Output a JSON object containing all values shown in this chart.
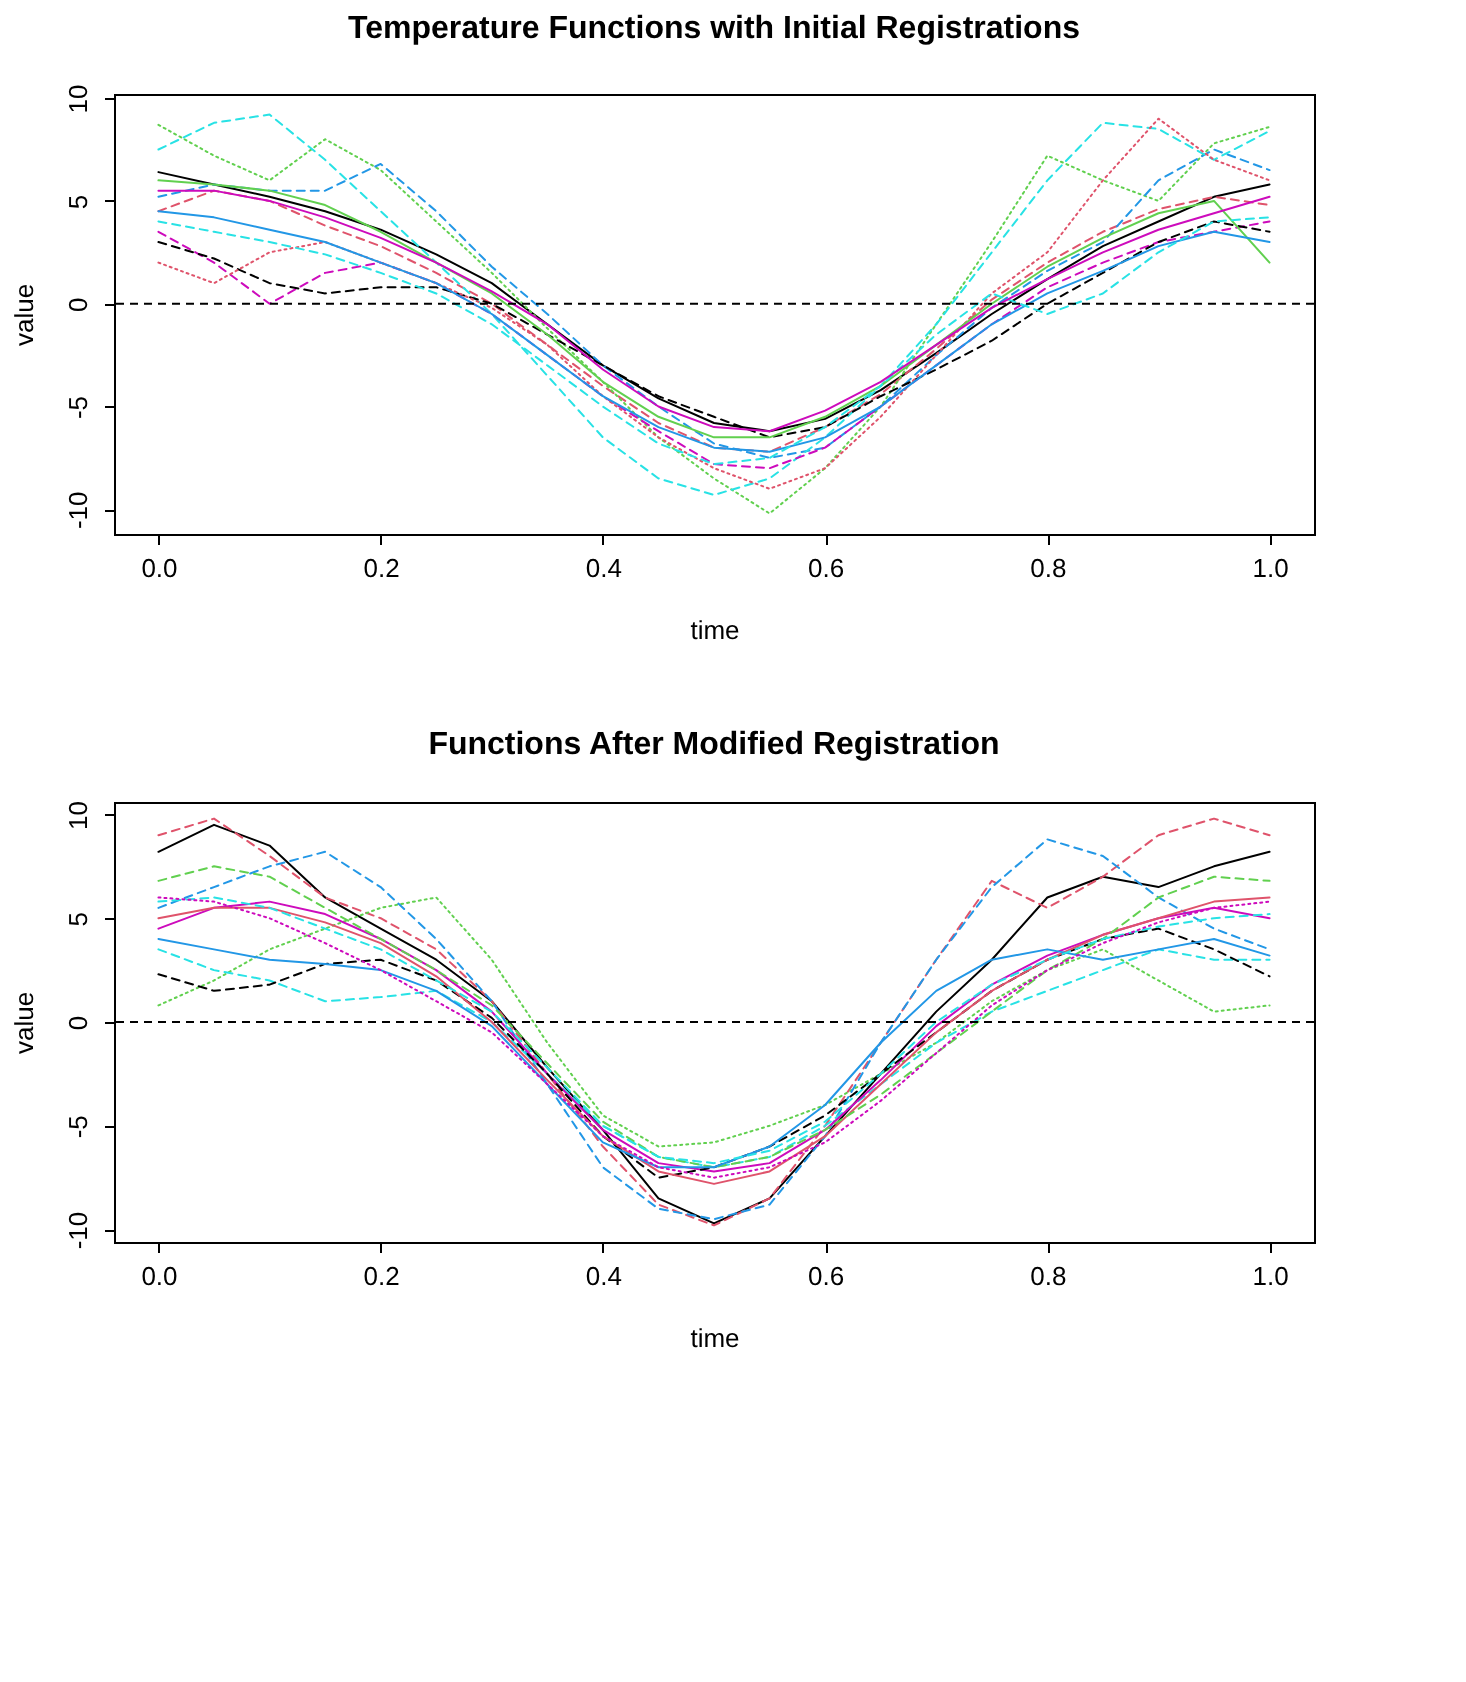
{
  "chart_data": [
    {
      "type": "line",
      "title": "Temperature Functions with Initial Registrations",
      "xlabel": "time",
      "ylabel": "value",
      "x": [
        0,
        0.05,
        0.1,
        0.15,
        0.2,
        0.25,
        0.3,
        0.35,
        0.4,
        0.45,
        0.5,
        0.55,
        0.6,
        0.65,
        0.7,
        0.75,
        0.8,
        0.85,
        0.9,
        0.95,
        1
      ],
      "xlim": [
        -0.04,
        1.04
      ],
      "ylim": [
        -11.2,
        10.2
      ],
      "xticks": [
        {
          "value": 0,
          "label": "0.0"
        },
        0.2,
        0.4,
        0.6,
        0.8,
        {
          "value": 1,
          "label": "1.0"
        }
      ],
      "yticks": [
        -10,
        -5,
        0,
        5,
        10
      ],
      "ref_lines": [
        {
          "axis": "y",
          "value": 0,
          "color": "#000000",
          "line_style": "dashed"
        }
      ],
      "series": [
        {
          "color": "#000000",
          "line_style": "solid",
          "values": [
            6.4,
            5.8,
            5.2,
            4.5,
            3.6,
            2.4,
            1.0,
            -1.0,
            -3.0,
            -4.6,
            -5.8,
            -6.2,
            -5.6,
            -4.2,
            -2.4,
            -0.5,
            1.2,
            2.8,
            4.0,
            5.2,
            5.8
          ]
        },
        {
          "color": "#df536b",
          "line_style": "dashed",
          "values": [
            4.5,
            5.5,
            5.0,
            3.8,
            2.8,
            1.5,
            0.0,
            -2.0,
            -4.0,
            -5.8,
            -7.0,
            -7.2,
            -6.0,
            -4.4,
            -2.2,
            0.2,
            2.0,
            3.5,
            4.6,
            5.2,
            4.8
          ]
        },
        {
          "color": "#61d04f",
          "line_style": "dotted",
          "values": [
            8.7,
            7.2,
            6.0,
            8.0,
            6.5,
            4.0,
            1.5,
            -1.2,
            -3.8,
            -6.5,
            -8.5,
            -10.2,
            -8.0,
            -5.0,
            -1.0,
            3.0,
            7.2,
            6.0,
            5.0,
            7.8,
            8.6
          ]
        },
        {
          "color": "#2297e6",
          "line_style": "dashed",
          "values": [
            5.2,
            5.8,
            5.5,
            5.5,
            6.8,
            4.5,
            1.8,
            -0.5,
            -3.0,
            -5.0,
            -6.8,
            -7.5,
            -7.0,
            -5.0,
            -2.5,
            -0.2,
            1.6,
            3.0,
            6.0,
            7.5,
            6.5
          ]
        },
        {
          "color": "#28e2e5",
          "line_style": "dashed",
          "values": [
            7.5,
            8.8,
            9.2,
            7.0,
            4.5,
            2.0,
            -0.5,
            -3.5,
            -6.5,
            -8.5,
            -9.3,
            -8.5,
            -6.5,
            -4.0,
            -1.0,
            2.5,
            6.0,
            8.8,
            8.5,
            7.0,
            8.4
          ]
        },
        {
          "color": "#cd0bbc",
          "line_style": "dashed",
          "values": [
            3.5,
            2.0,
            0.0,
            1.5,
            2.0,
            1.0,
            -0.5,
            -2.5,
            -4.5,
            -6.2,
            -7.8,
            -8.0,
            -7.0,
            -5.0,
            -3.0,
            -1.0,
            0.8,
            2.0,
            3.0,
            3.5,
            4.0
          ]
        },
        {
          "color": "#000000",
          "line_style": "dashed",
          "values": [
            3.0,
            2.2,
            1.0,
            0.5,
            0.8,
            0.8,
            0.0,
            -1.5,
            -3.0,
            -4.5,
            -5.5,
            -6.5,
            -6.0,
            -4.5,
            -3.2,
            -1.8,
            0.0,
            1.5,
            3.0,
            4.0,
            3.5
          ]
        },
        {
          "color": "#df536b",
          "line_style": "dotted",
          "values": [
            2.0,
            1.0,
            2.5,
            3.0,
            2.0,
            1.0,
            -0.2,
            -2.0,
            -4.5,
            -6.5,
            -8.0,
            -9.0,
            -8.0,
            -5.5,
            -2.5,
            0.5,
            2.5,
            6.0,
            9.0,
            7.0,
            6.0
          ]
        },
        {
          "color": "#61d04f",
          "line_style": "solid",
          "values": [
            6.0,
            5.8,
            5.5,
            4.8,
            3.5,
            2.0,
            0.5,
            -1.5,
            -3.8,
            -5.5,
            -6.5,
            -6.5,
            -5.5,
            -4.0,
            -2.0,
            0.0,
            1.8,
            3.2,
            4.4,
            5.0,
            2.0
          ]
        },
        {
          "color": "#2297e6",
          "line_style": "solid",
          "values": [
            4.5,
            4.2,
            3.6,
            3.0,
            2.0,
            1.0,
            -0.5,
            -2.5,
            -4.5,
            -6.0,
            -7.0,
            -7.2,
            -6.5,
            -5.0,
            -3.0,
            -1.0,
            0.5,
            1.6,
            2.8,
            3.5,
            3.0
          ]
        },
        {
          "color": "#28e2e5",
          "line_style": "dashed",
          "values": [
            4.0,
            3.5,
            3.0,
            2.4,
            1.5,
            0.5,
            -1.0,
            -3.0,
            -5.0,
            -6.8,
            -7.8,
            -7.5,
            -6.0,
            -4.0,
            -1.5,
            0.5,
            -0.5,
            0.5,
            2.5,
            4.0,
            4.2
          ]
        },
        {
          "color": "#cd0bbc",
          "line_style": "solid",
          "values": [
            5.5,
            5.5,
            5.0,
            4.2,
            3.2,
            2.0,
            0.6,
            -1.0,
            -3.2,
            -5.0,
            -6.0,
            -6.2,
            -5.2,
            -3.8,
            -2.0,
            -0.2,
            1.2,
            2.5,
            3.6,
            4.4,
            5.2
          ]
        }
      ]
    },
    {
      "type": "line",
      "title": "Functions After Modified Registration",
      "xlabel": "time",
      "ylabel": "value",
      "x": [
        0,
        0.05,
        0.1,
        0.15,
        0.2,
        0.25,
        0.3,
        0.35,
        0.4,
        0.45,
        0.5,
        0.55,
        0.6,
        0.65,
        0.7,
        0.75,
        0.8,
        0.85,
        0.9,
        0.95,
        1
      ],
      "xlim": [
        -0.04,
        1.04
      ],
      "ylim": [
        -10.6,
        10.6
      ],
      "xticks": [
        {
          "value": 0,
          "label": "0.0"
        },
        0.2,
        0.4,
        0.6,
        0.8,
        {
          "value": 1,
          "label": "1.0"
        }
      ],
      "yticks": [
        -10,
        -5,
        0,
        5,
        10
      ],
      "ref_lines": [
        {
          "axis": "y",
          "value": 0,
          "color": "#000000",
          "line_style": "dashed"
        }
      ],
      "series": [
        {
          "color": "#000000",
          "line_style": "solid",
          "values": [
            8.2,
            9.5,
            8.5,
            6.0,
            4.5,
            3.0,
            1.0,
            -2.2,
            -5.2,
            -8.5,
            -9.7,
            -8.5,
            -5.5,
            -2.5,
            0.5,
            3.0,
            6.0,
            7.0,
            6.5,
            7.5,
            8.2
          ]
        },
        {
          "color": "#df536b",
          "line_style": "dashed",
          "values": [
            9.0,
            9.8,
            8.0,
            6.0,
            5.0,
            3.5,
            1.0,
            -2.5,
            -6.0,
            -8.8,
            -9.8,
            -8.5,
            -5.0,
            -1.0,
            3.0,
            6.8,
            5.5,
            7.0,
            9.0,
            9.8,
            9.0
          ]
        },
        {
          "color": "#61d04f",
          "line_style": "dotted",
          "values": [
            0.8,
            2.0,
            3.5,
            4.5,
            5.5,
            6.0,
            3.0,
            -1.0,
            -4.5,
            -6.0,
            -5.8,
            -5.0,
            -4.0,
            -2.5,
            -1.0,
            1.0,
            2.5,
            3.5,
            2.0,
            0.5,
            0.8
          ]
        },
        {
          "color": "#2297e6",
          "line_style": "dashed",
          "values": [
            5.5,
            6.5,
            7.5,
            8.2,
            6.5,
            4.0,
            1.0,
            -3.0,
            -7.0,
            -9.0,
            -9.5,
            -8.8,
            -5.5,
            -1.0,
            3.0,
            6.5,
            8.8,
            8.0,
            6.0,
            4.5,
            3.5
          ]
        },
        {
          "color": "#28e2e5",
          "line_style": "dashed",
          "values": [
            3.5,
            2.5,
            2.0,
            1.0,
            1.2,
            1.5,
            0.0,
            -2.5,
            -5.0,
            -6.5,
            -7.0,
            -6.5,
            -5.0,
            -3.0,
            -1.0,
            0.5,
            1.5,
            2.5,
            3.5,
            3.0,
            3.0
          ]
        },
        {
          "color": "#cd0bbc",
          "line_style": "solid",
          "values": [
            4.5,
            5.5,
            5.8,
            5.2,
            4.0,
            2.5,
            0.5,
            -2.5,
            -5.2,
            -6.8,
            -7.2,
            -6.8,
            -5.2,
            -2.8,
            -0.2,
            1.8,
            3.2,
            4.2,
            5.0,
            5.5,
            5.0
          ]
        },
        {
          "color": "#000000",
          "line_style": "dashed",
          "values": [
            2.3,
            1.5,
            1.8,
            2.8,
            3.0,
            2.0,
            0.2,
            -2.5,
            -5.5,
            -7.5,
            -7.0,
            -6.0,
            -4.5,
            -2.5,
            -0.5,
            1.5,
            3.0,
            4.0,
            4.5,
            3.5,
            2.2
          ]
        },
        {
          "color": "#df536b",
          "line_style": "solid",
          "values": [
            5.0,
            5.5,
            5.5,
            4.8,
            3.8,
            2.2,
            0.0,
            -2.8,
            -5.5,
            -7.2,
            -7.8,
            -7.2,
            -5.5,
            -3.0,
            -0.5,
            1.5,
            3.0,
            4.2,
            5.0,
            5.8,
            6.0
          ]
        },
        {
          "color": "#61d04f",
          "line_style": "dashed",
          "values": [
            6.8,
            7.5,
            7.0,
            5.5,
            4.0,
            2.5,
            0.8,
            -2.0,
            -4.8,
            -6.5,
            -7.0,
            -6.5,
            -5.2,
            -3.5,
            -1.5,
            0.5,
            2.5,
            4.0,
            6.0,
            7.0,
            6.8
          ]
        },
        {
          "color": "#2297e6",
          "line_style": "solid",
          "values": [
            4.0,
            3.5,
            3.0,
            2.8,
            2.5,
            1.5,
            -0.2,
            -3.0,
            -5.8,
            -7.0,
            -7.0,
            -6.0,
            -4.0,
            -1.0,
            1.5,
            3.0,
            3.5,
            3.0,
            3.5,
            4.0,
            3.2
          ]
        },
        {
          "color": "#28e2e5",
          "line_style": "dashed",
          "values": [
            5.8,
            6.0,
            5.5,
            4.5,
            3.5,
            2.0,
            0.5,
            -2.2,
            -5.0,
            -6.5,
            -6.8,
            -6.2,
            -4.8,
            -2.5,
            0.0,
            1.8,
            3.0,
            4.0,
            4.6,
            5.0,
            5.2
          ]
        },
        {
          "color": "#cd0bbc",
          "line_style": "dotted",
          "values": [
            6.0,
            5.8,
            5.0,
            3.8,
            2.5,
            1.0,
            -0.5,
            -3.0,
            -5.5,
            -7.0,
            -7.5,
            -7.0,
            -5.8,
            -3.8,
            -1.5,
            0.8,
            2.5,
            3.8,
            4.8,
            5.5,
            5.8
          ]
        }
      ]
    }
  ]
}
